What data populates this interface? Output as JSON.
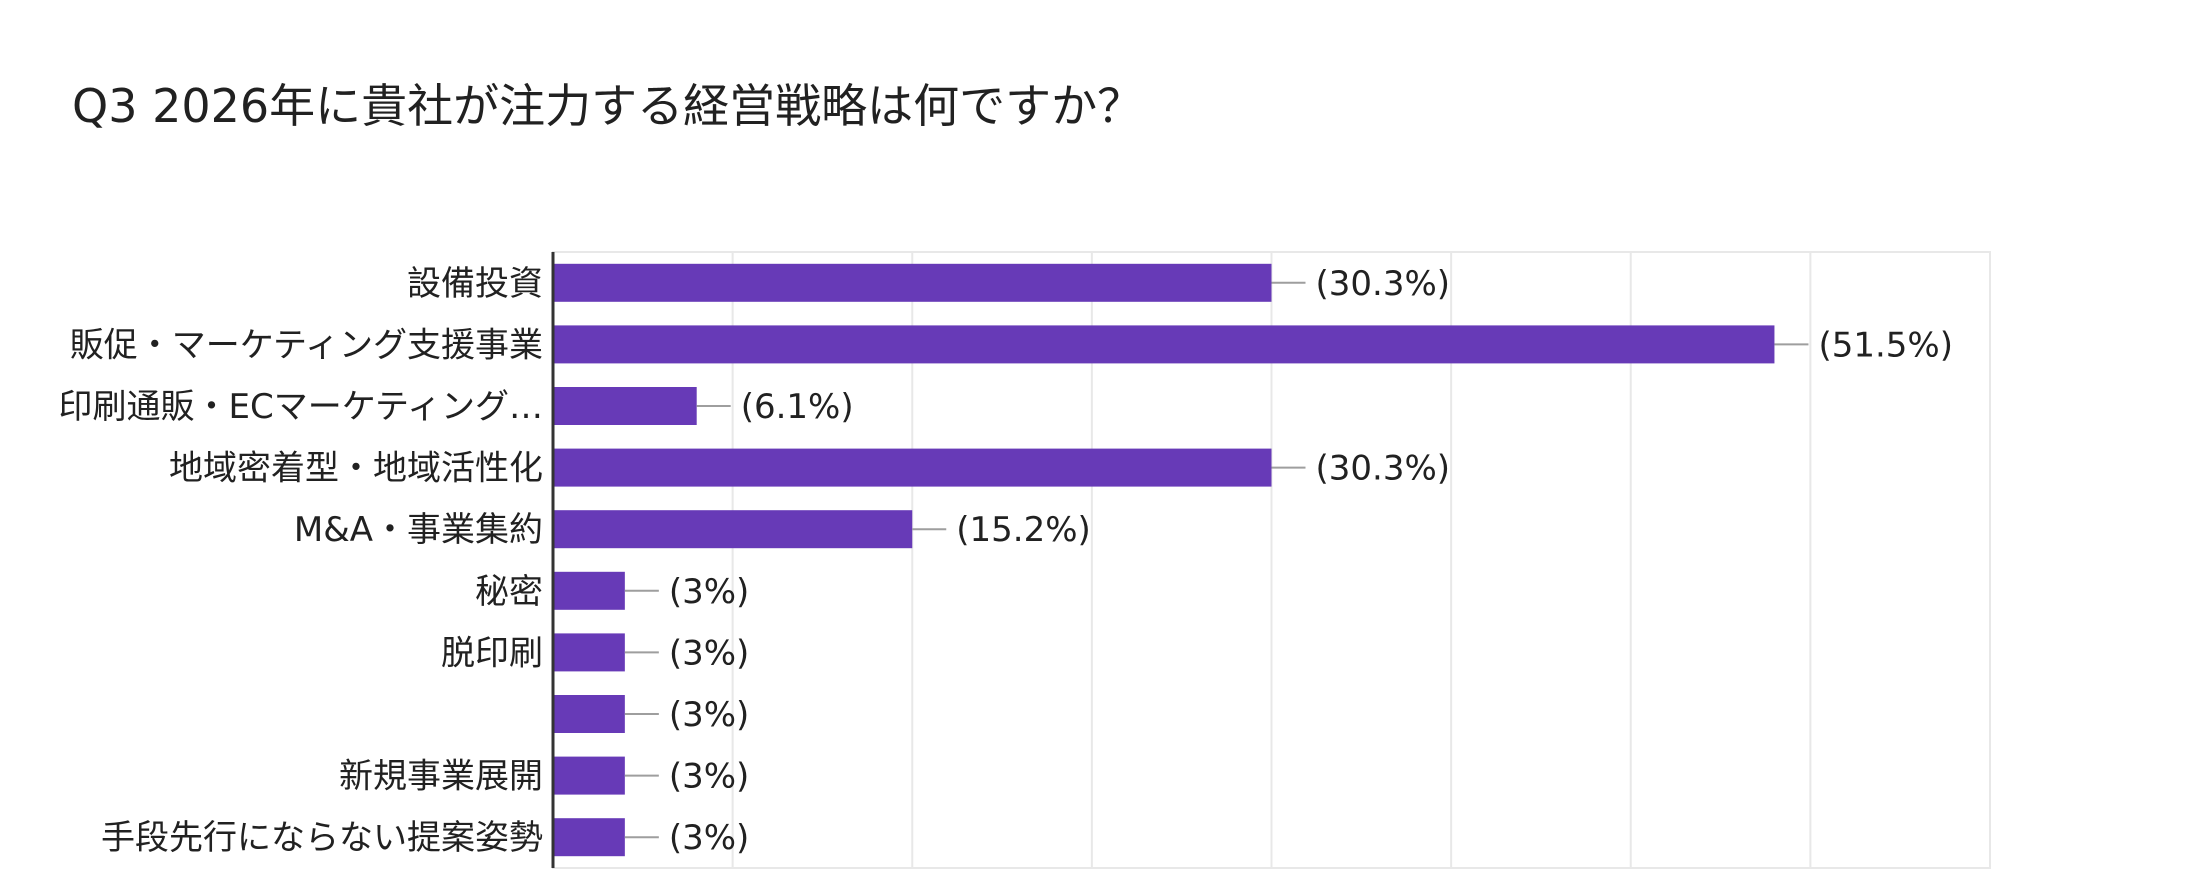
{
  "title": "Q3 2026年に貴社が注力する経営戦略は何ですか？",
  "colors": {
    "bar": "#673ab7",
    "gridline": "#e8e8e8",
    "axis": "#333333",
    "leader": "#9e9e9e"
  },
  "chart_data": {
    "type": "bar",
    "orientation": "horizontal",
    "title": "Q3 2026年に貴社が注力する経営戦略は何ですか？",
    "categories": [
      "設備投資",
      "販促・マーケティング支援事業",
      "印刷通販・ECマーケティング…",
      "地域密着型・地域活性化",
      "M&A・事業集約",
      "秘密",
      "脱印刷",
      "",
      "新規事業展開",
      "手段先行にならない提案姿勢"
    ],
    "values": [
      10,
      17,
      2,
      10,
      5,
      1,
      1,
      1,
      1,
      1
    ],
    "value_labels": [
      "(30.3%)",
      "(51.5%)",
      "(6.1%)",
      "(30.3%)",
      "(15.2%)",
      "(3%)",
      "(3%)",
      "(3%)",
      "(3%)",
      "(3%)"
    ],
    "xlim": [
      0,
      20
    ],
    "grid": true,
    "legend": "none"
  }
}
